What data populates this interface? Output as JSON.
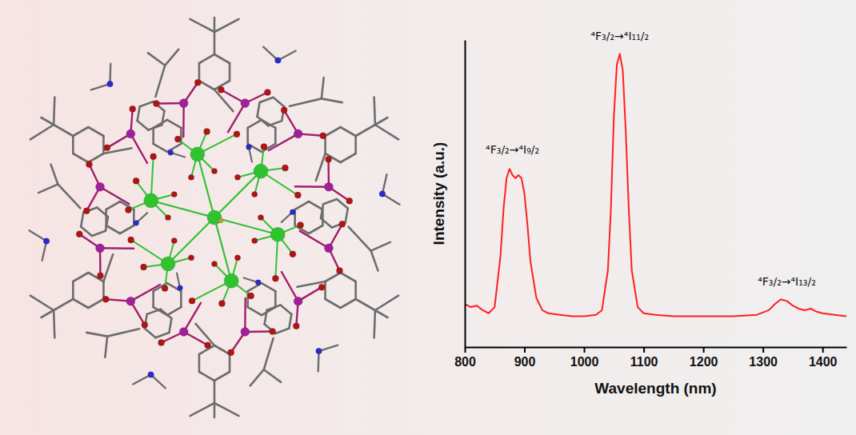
{
  "chart_data": {
    "type": "line",
    "x_label": "Wavelength (nm)",
    "y_label": "Intensity (a.u.)",
    "x": [
      800,
      810,
      820,
      830,
      840,
      850,
      860,
      865,
      870,
      875,
      880,
      885,
      890,
      895,
      900,
      905,
      910,
      920,
      930,
      940,
      960,
      980,
      1000,
      1020,
      1030,
      1040,
      1045,
      1050,
      1055,
      1060,
      1065,
      1070,
      1075,
      1080,
      1090,
      1100,
      1120,
      1150,
      1200,
      1250,
      1290,
      1310,
      1320,
      1330,
      1340,
      1350,
      1360,
      1370,
      1380,
      1390,
      1400,
      1420,
      1440
    ],
    "values": [
      0.14,
      0.13,
      0.135,
      0.12,
      0.11,
      0.13,
      0.3,
      0.45,
      0.55,
      0.58,
      0.56,
      0.55,
      0.56,
      0.55,
      0.5,
      0.4,
      0.28,
      0.16,
      0.12,
      0.11,
      0.105,
      0.1,
      0.1,
      0.105,
      0.12,
      0.25,
      0.45,
      0.75,
      0.92,
      0.955,
      0.9,
      0.7,
      0.45,
      0.25,
      0.13,
      0.11,
      0.105,
      0.1,
      0.1,
      0.1,
      0.105,
      0.12,
      0.14,
      0.155,
      0.15,
      0.135,
      0.125,
      0.12,
      0.125,
      0.115,
      0.11,
      0.105,
      0.1
    ],
    "color": "#ff1f1f",
    "xlim": [
      800,
      1440
    ],
    "xticks": [
      800,
      900,
      1000,
      1100,
      1200,
      1300,
      1400
    ],
    "ylim": [
      0,
      1
    ],
    "tick_labels": "x",
    "grid": false,
    "annotations": [
      {
        "text": "⁴F₃/₂→⁴I₉/₂",
        "x": 880,
        "y": 0.63
      },
      {
        "text": "⁴F₃/₂→⁴I₁₁/₂",
        "x": 1060,
        "y": 1.0
      },
      {
        "text": "⁴F₃/₂→⁴I₁₃/₂",
        "x": 1340,
        "y": 0.2
      }
    ]
  }
}
